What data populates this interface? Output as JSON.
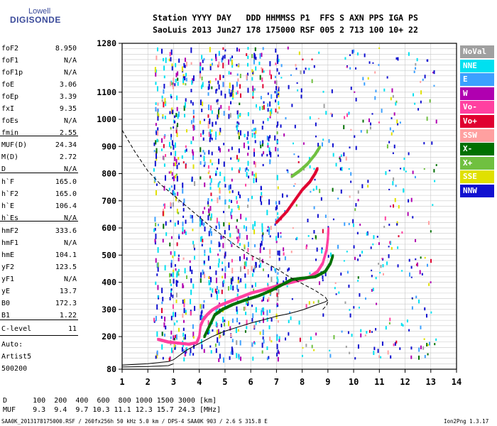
{
  "logo": {
    "top": "Lowell",
    "main": "DIGISONDE"
  },
  "header": {
    "line1": "Station YYYY DAY   DDD HHMMSS P1  FFS S AXN PPS IGA PS",
    "line2": "SaoLuis 2013 Jun27 178 175000 RSF 005 2 713 100 10+ 22"
  },
  "params": [
    {
      "name": "foF2",
      "value": "8.950"
    },
    {
      "name": "foF1",
      "value": "N/A"
    },
    {
      "name": "foF1p",
      "value": "N/A"
    },
    {
      "name": "foE",
      "value": "3.06"
    },
    {
      "name": "foEp",
      "value": "3.39"
    },
    {
      "name": "fxI",
      "value": "9.35"
    },
    {
      "name": "foEs",
      "value": "N/A"
    },
    {
      "name": "fmin",
      "value": "2.55"
    },
    {
      "name": "MUF(D)",
      "value": "24.34"
    },
    {
      "name": "M(D)",
      "value": "2.72"
    },
    {
      "name": "D",
      "value": "N/A"
    },
    {
      "name": "h`F",
      "value": "165.0"
    },
    {
      "name": "h`F2",
      "value": "165.0"
    },
    {
      "name": "h`E",
      "value": "106.4"
    },
    {
      "name": "h`Es",
      "value": "N/A"
    },
    {
      "name": "hmF2",
      "value": "333.6"
    },
    {
      "name": "hmF1",
      "value": "N/A"
    },
    {
      "name": "hmE",
      "value": "104.1"
    },
    {
      "name": "yF2",
      "value": "123.5"
    },
    {
      "name": "yF1",
      "value": "N/A"
    },
    {
      "name": "yE",
      "value": "13.7"
    },
    {
      "name": "B0",
      "value": "172.3"
    },
    {
      "name": "B1",
      "value": "1.22"
    },
    {
      "name": "C-level",
      "value": "11"
    }
  ],
  "auto": {
    "label": "Auto:",
    "software": "Artist5",
    "version": "500200"
  },
  "muf_table": {
    "d_line": "D      100  200  400  600  800 1000 1500 3000 [km]",
    "muf_line": "MUF    9.3  9.4  9.7 10.3 11.1 12.3 15.7 24.3 [MHz]"
  },
  "footer": {
    "left": "SAA0K_2013178175000.RSF / 260fx256h 50 kHz 5.0 km / DPS-4 SAA0K 903 / 2.6 S 315.8 E",
    "right": "Ion2Png 1.3.17"
  },
  "legend": [
    {
      "label": "NoVal",
      "color": "#a0a0a0"
    },
    {
      "label": "NNE",
      "color": "#00e0f0"
    },
    {
      "label": "E",
      "color": "#3ca0ff"
    },
    {
      "label": "W",
      "color": "#b000b0"
    },
    {
      "label": "Vo-",
      "color": "#ff40a0"
    },
    {
      "label": "Vo+",
      "color": "#e00030"
    },
    {
      "label": "SSW",
      "color": "#ffa0a0"
    },
    {
      "label": "X-",
      "color": "#007000"
    },
    {
      "label": "X+",
      "color": "#70c040"
    },
    {
      "label": "SSE",
      "color": "#e0e000"
    },
    {
      "label": "NNW",
      "color": "#1010d0"
    }
  ],
  "chart_data": {
    "type": "scatter",
    "xlim": [
      1,
      14
    ],
    "ylim": [
      80,
      1280
    ],
    "x_ticks": [
      1,
      2,
      3,
      4,
      5,
      6,
      7,
      8,
      9,
      10,
      11,
      12,
      13,
      14
    ],
    "y_ticks": [
      80,
      200,
      300,
      400,
      500,
      600,
      700,
      800,
      900,
      1000,
      1100,
      1280
    ],
    "grid": true,
    "series": [
      {
        "name": "Vo-",
        "color": "#ff40a0",
        "points": [
          [
            2.4,
            190
          ],
          [
            2.6,
            185
          ],
          [
            2.8,
            180
          ],
          [
            3.0,
            178
          ],
          [
            3.3,
            175
          ],
          [
            3.6,
            172
          ],
          [
            3.9,
            178
          ],
          [
            4.0,
            200
          ],
          [
            4.05,
            240
          ],
          [
            4.15,
            262
          ],
          [
            4.3,
            280
          ],
          [
            4.5,
            298
          ],
          [
            4.8,
            315
          ],
          [
            5.2,
            330
          ],
          [
            5.6,
            345
          ],
          [
            6.0,
            360
          ],
          [
            6.4,
            370
          ],
          [
            6.8,
            380
          ],
          [
            7.2,
            392
          ],
          [
            7.6,
            400
          ],
          [
            8.0,
            410
          ],
          [
            8.3,
            420
          ],
          [
            8.6,
            440
          ],
          [
            8.8,
            470
          ],
          [
            8.95,
            520
          ],
          [
            9.0,
            560
          ],
          [
            9.02,
            600
          ]
        ]
      },
      {
        "name": "X-",
        "color": "#007000",
        "points": [
          [
            4.2,
            200
          ],
          [
            4.4,
            240
          ],
          [
            4.6,
            280
          ],
          [
            4.9,
            300
          ],
          [
            5.3,
            318
          ],
          [
            5.8,
            335
          ],
          [
            6.3,
            350
          ],
          [
            6.8,
            370
          ],
          [
            7.3,
            395
          ],
          [
            7.6,
            410
          ],
          [
            8.0,
            415
          ],
          [
            8.5,
            420
          ],
          [
            8.9,
            440
          ],
          [
            9.1,
            470
          ],
          [
            9.2,
            500
          ]
        ]
      },
      {
        "name": "Vo+",
        "color": "#e00030",
        "points": [
          [
            7.0,
            620
          ],
          [
            7.4,
            660
          ],
          [
            7.7,
            700
          ],
          [
            8.0,
            740
          ],
          [
            8.3,
            770
          ],
          [
            8.5,
            800
          ],
          [
            8.6,
            820
          ]
        ]
      },
      {
        "name": "X+",
        "color": "#70c040",
        "points": [
          [
            7.6,
            790
          ],
          [
            7.9,
            810
          ],
          [
            8.2,
            835
          ],
          [
            8.5,
            870
          ],
          [
            8.7,
            900
          ]
        ]
      }
    ],
    "curves": [
      {
        "style": "dashed",
        "points": [
          [
            1.0,
            960
          ],
          [
            1.5,
            880
          ],
          [
            2.0,
            810
          ],
          [
            2.5,
            760
          ],
          [
            3.0,
            720
          ],
          [
            3.5,
            680
          ],
          [
            4.0,
            640
          ],
          [
            4.5,
            600
          ],
          [
            5.0,
            565
          ],
          [
            5.5,
            530
          ],
          [
            6.0,
            500
          ],
          [
            6.5,
            475
          ],
          [
            7.0,
            450
          ],
          [
            7.5,
            420
          ],
          [
            8.0,
            395
          ],
          [
            8.5,
            370
          ],
          [
            8.9,
            345
          ],
          [
            9.0,
            330
          ],
          [
            8.95,
            315
          ],
          [
            8.8,
            300
          ]
        ]
      },
      {
        "style": "solid",
        "points": [
          [
            1.0,
            95
          ],
          [
            2.0,
            100
          ],
          [
            2.8,
            108
          ],
          [
            3.0,
            115
          ],
          [
            3.5,
            150
          ],
          [
            4.0,
            175
          ],
          [
            4.5,
            200
          ],
          [
            5.0,
            220
          ],
          [
            5.5,
            235
          ],
          [
            6.0,
            250
          ],
          [
            6.5,
            262
          ],
          [
            7.0,
            275
          ],
          [
            7.5,
            285
          ],
          [
            8.0,
            298
          ],
          [
            8.5,
            315
          ],
          [
            8.9,
            328
          ],
          [
            9.0,
            334
          ]
        ]
      },
      {
        "style": "solid",
        "points": [
          [
            1.0,
            88
          ],
          [
            2.0,
            90
          ],
          [
            2.8,
            93
          ],
          [
            3.0,
            100
          ]
        ]
      }
    ]
  }
}
